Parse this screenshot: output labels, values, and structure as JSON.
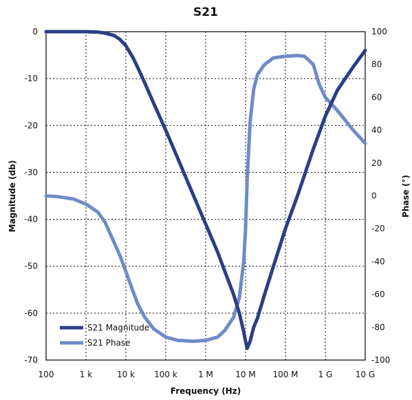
{
  "chart_data": {
    "type": "line",
    "title": "S21",
    "xlabel": "Frequency (Hz)",
    "ylabel": "Magnitude (db)",
    "y2label": "Phase (°)",
    "xscale": "log",
    "xlim": [
      100,
      10000000000
    ],
    "ylim": [
      -70,
      0
    ],
    "y2lim": [
      -100,
      100
    ],
    "grid": true,
    "legend_position": "bottom-left",
    "x_ticks": [
      {
        "value": 100,
        "label": "100"
      },
      {
        "value": 1000,
        "label": "1 k"
      },
      {
        "value": 10000,
        "label": "10 k"
      },
      {
        "value": 100000,
        "label": "100 k"
      },
      {
        "value": 1000000,
        "label": "1 M"
      },
      {
        "value": 10000000,
        "label": "10 M"
      },
      {
        "value": 100000000,
        "label": "100 M"
      },
      {
        "value": 1000000000,
        "label": "1 G"
      },
      {
        "value": 10000000000,
        "label": "10 G"
      }
    ],
    "y_ticks": [
      {
        "value": 0,
        "label": "0"
      },
      {
        "value": -10,
        "label": "-10"
      },
      {
        "value": -20,
        "label": "-20"
      },
      {
        "value": -30,
        "label": "-30"
      },
      {
        "value": -40,
        "label": "-40"
      },
      {
        "value": -50,
        "label": "-50"
      },
      {
        "value": -60,
        "label": "-60"
      },
      {
        "value": -70,
        "label": "-70"
      }
    ],
    "y2_ticks": [
      {
        "value": 100,
        "label": "100"
      },
      {
        "value": 80,
        "label": "80"
      },
      {
        "value": 60,
        "label": "60"
      },
      {
        "value": 40,
        "label": "40"
      },
      {
        "value": 20,
        "label": "20"
      },
      {
        "value": 0,
        "label": "0"
      },
      {
        "value": -20,
        "label": "-20"
      },
      {
        "value": -40,
        "label": "-40"
      },
      {
        "value": -60,
        "label": "-60"
      },
      {
        "value": -80,
        "label": "-80"
      },
      {
        "value": -100,
        "label": "-100"
      }
    ],
    "series": [
      {
        "name": "S21 Magnitude",
        "axis": "left",
        "color": "#2c3e84",
        "x": [
          100,
          200,
          500,
          1000,
          2000,
          3000,
          5000,
          7000,
          10000,
          15000,
          20000,
          30000,
          50000,
          100000,
          200000,
          500000,
          1000000,
          2000000,
          3000000,
          5000000,
          7000000,
          9000000,
          10000000,
          11000000,
          13000000,
          16000000,
          20000000,
          30000000,
          50000000,
          100000000,
          200000000,
          500000000,
          1000000000,
          2000000000,
          5000000000,
          10000000000
        ],
        "y": [
          0,
          0,
          0,
          0,
          -0.1,
          -0.3,
          -0.8,
          -1.6,
          -3.0,
          -5.5,
          -7.7,
          -11.0,
          -15.3,
          -21.0,
          -27.0,
          -35.0,
          -41.0,
          -47.0,
          -51.0,
          -56.0,
          -60.0,
          -64.0,
          -66.0,
          -67.5,
          -66.0,
          -63.0,
          -61.0,
          -56.0,
          -50.0,
          -42.0,
          -35.0,
          -25.0,
          -18.0,
          -12.5,
          -7.5,
          -4.0
        ]
      },
      {
        "name": "S21 Phase",
        "axis": "right",
        "color": "#6f8cc7",
        "x": [
          100,
          200,
          500,
          1000,
          2000,
          3000,
          5000,
          7000,
          10000,
          15000,
          20000,
          30000,
          50000,
          100000,
          200000,
          500000,
          1000000,
          2000000,
          3000000,
          5000000,
          7000000,
          9000000,
          10000000,
          11000000,
          13000000,
          16000000,
          20000000,
          30000000,
          50000000,
          100000000,
          200000000,
          300000000,
          500000000,
          700000000,
          1000000000,
          2000000000,
          5000000000,
          10000000000
        ],
        "y": [
          0,
          -0.5,
          -2,
          -5,
          -10,
          -16,
          -28,
          -36,
          -46,
          -58,
          -66,
          -74,
          -81,
          -86,
          -88,
          -88.5,
          -88,
          -86,
          -82,
          -74,
          -62,
          -40,
          -20,
          10,
          45,
          65,
          74,
          80,
          84,
          85,
          85.5,
          85,
          80,
          68,
          60,
          52,
          40,
          32
        ]
      }
    ]
  }
}
